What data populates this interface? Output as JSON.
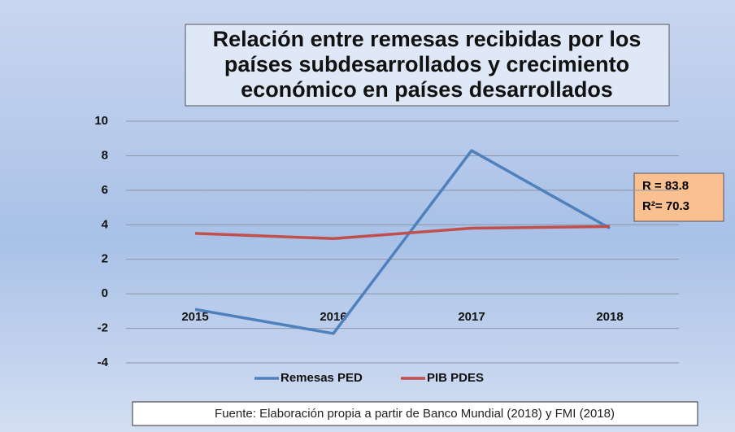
{
  "chart_data": {
    "type": "line",
    "title": [
      "Relación entre remesas recibidas por los",
      "países subdesarrollados y crecimiento",
      "económico en países desarrollados"
    ],
    "categories": [
      "2015",
      "2016",
      "2017",
      "2018"
    ],
    "series": [
      {
        "name": "Remesas PED",
        "color": "#4f81bd",
        "values": [
          -0.9,
          -2.3,
          8.3,
          3.8
        ]
      },
      {
        "name": "PIB PDES",
        "color": "#c0504d",
        "values": [
          3.5,
          3.2,
          3.8,
          3.9
        ]
      }
    ],
    "ylim": [
      -4,
      10
    ],
    "yticks": [
      -4,
      -2,
      0,
      2,
      4,
      6,
      8,
      10
    ],
    "grid": true,
    "legend": "bottom",
    "annotations": [
      "R = 83.8",
      "R²= 70.3"
    ],
    "source": "Fuente: Elaboración propia a partir de Banco Mundial (2018) y FMI (2018)"
  }
}
